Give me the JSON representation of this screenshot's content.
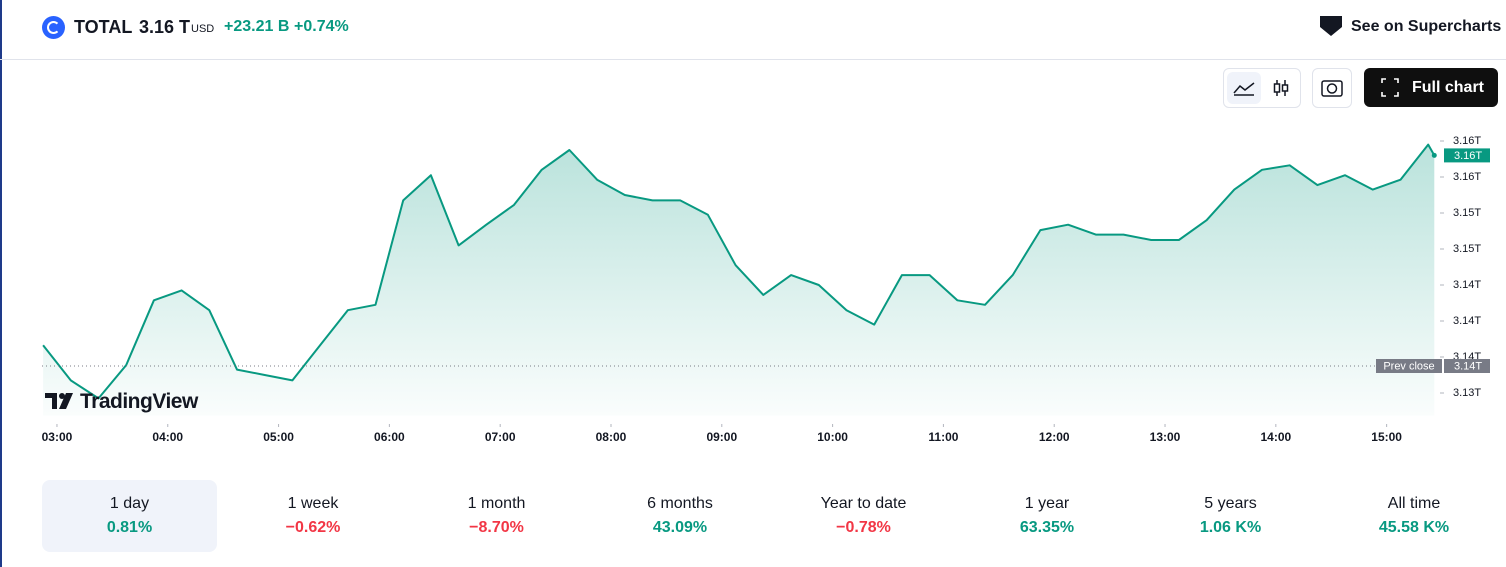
{
  "header": {
    "symbol": "TOTAL",
    "price": "3.16 T",
    "currency": "USD",
    "change": "+23.21 B",
    "change_percent": "+0.74%",
    "link": "See on Supercharts"
  },
  "toolbar": {
    "full_chart": "Full chart"
  },
  "watermark": "TradingView",
  "chart_data": {
    "type": "area",
    "color": "#089981",
    "x": [
      2.875,
      3.125,
      3.375,
      3.625,
      3.875,
      4.125,
      4.375,
      4.625,
      4.875,
      5.125,
      5.375,
      5.625,
      5.875,
      6.125,
      6.375,
      6.625,
      6.875,
      7.125,
      7.375,
      7.625,
      7.875,
      8.125,
      8.375,
      8.625,
      8.875,
      9.125,
      9.375,
      9.625,
      9.875,
      10.125,
      10.375,
      10.625,
      10.875,
      11.125,
      11.375,
      11.625,
      11.875,
      12.125,
      12.375,
      12.625,
      12.875,
      13.125,
      13.375,
      13.625,
      13.875,
      14.125,
      14.375,
      14.625,
      14.875,
      15.125,
      15.375,
      15.43
    ],
    "values": [
      3.1373,
      3.1334,
      3.1314,
      3.1351,
      3.1423,
      3.1434,
      3.1412,
      3.1346,
      3.134,
      3.1334,
      3.1373,
      3.1412,
      3.1418,
      3.1534,
      3.1562,
      3.1484,
      3.1507,
      3.1529,
      3.1568,
      3.159,
      3.1557,
      3.154,
      3.1534,
      3.1534,
      3.1518,
      3.1462,
      3.1429,
      3.1451,
      3.144,
      3.1412,
      3.1396,
      3.1451,
      3.1451,
      3.1423,
      3.1418,
      3.1451,
      3.1501,
      3.1507,
      3.1496,
      3.1496,
      3.149,
      3.149,
      3.1512,
      3.1546,
      3.1568,
      3.1573,
      3.1551,
      3.1562,
      3.1546,
      3.1557,
      3.1596,
      3.1584
    ],
    "xlim": [
      2.865,
      15.7
    ],
    "ylim": [
      3.1295,
      3.1625
    ],
    "xticks": [
      {
        "value": 3,
        "label": "03:00"
      },
      {
        "value": 4,
        "label": "04:00"
      },
      {
        "value": 5,
        "label": "05:00"
      },
      {
        "value": 6,
        "label": "06:00"
      },
      {
        "value": 7,
        "label": "07:00"
      },
      {
        "value": 8,
        "label": "08:00"
      },
      {
        "value": 9,
        "label": "09:00"
      },
      {
        "value": 10,
        "label": "10:00"
      },
      {
        "value": 11,
        "label": "11:00"
      },
      {
        "value": 12,
        "label": "12:00"
      },
      {
        "value": 13,
        "label": "13:00"
      },
      {
        "value": 14,
        "label": "14:00"
      },
      {
        "value": 15,
        "label": "15:00"
      }
    ],
    "yticks": [
      {
        "value": 3.16,
        "label": "3.16T"
      },
      {
        "value": 3.156,
        "label": "3.16T"
      },
      {
        "value": 3.152,
        "label": "3.15T"
      },
      {
        "value": 3.148,
        "label": "3.15T"
      },
      {
        "value": 3.144,
        "label": "3.14T"
      },
      {
        "value": 3.14,
        "label": "3.14T"
      },
      {
        "value": 3.136,
        "label": "3.14T"
      },
      {
        "value": 3.132,
        "label": "3.13T"
      }
    ],
    "last_price": {
      "value": 3.1584,
      "label": "3.16T"
    },
    "prev_close": {
      "name": "Prev close",
      "value": 3.135,
      "label": "3.14T"
    }
  },
  "periods": [
    {
      "label": "1 day",
      "change": "0.81%"
    },
    {
      "label": "1 week",
      "change": "−0.62%"
    },
    {
      "label": "1 month",
      "change": "−8.70%"
    },
    {
      "label": "6 months",
      "change": "43.09%"
    },
    {
      "label": "Year to date",
      "change": "−0.78%"
    },
    {
      "label": "1 year",
      "change": "63.35%"
    },
    {
      "label": "5 years",
      "change": "1.06 K%"
    },
    {
      "label": "All time",
      "change": "45.58 K%"
    }
  ]
}
